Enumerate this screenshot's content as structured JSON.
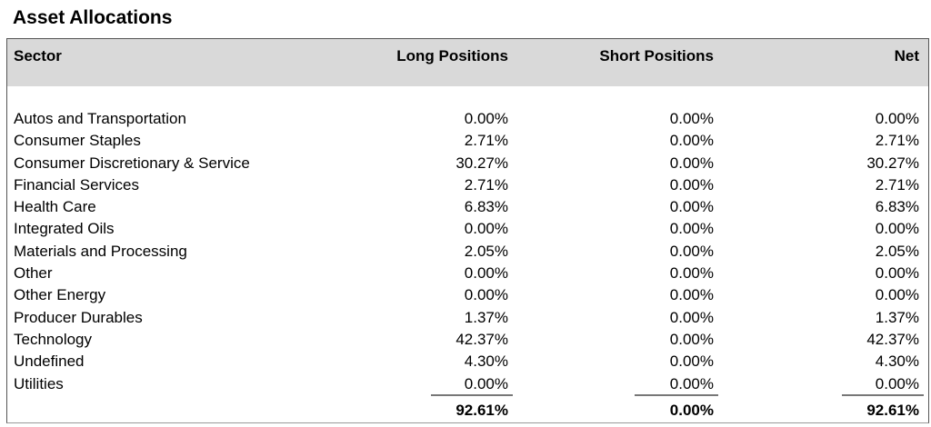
{
  "title": "Asset Allocations",
  "columns": {
    "sector": "Sector",
    "long": "Long Positions",
    "short": "Short Positions",
    "net": "Net"
  },
  "rows": [
    {
      "sector": "Autos and Transportation",
      "long": "0.00%",
      "short": "0.00%",
      "net": "0.00%"
    },
    {
      "sector": "Consumer Staples",
      "long": "2.71%",
      "short": "0.00%",
      "net": "2.71%"
    },
    {
      "sector": "Consumer Discretionary & Service",
      "long": "30.27%",
      "short": "0.00%",
      "net": "30.27%"
    },
    {
      "sector": "Financial Services",
      "long": "2.71%",
      "short": "0.00%",
      "net": "2.71%"
    },
    {
      "sector": "Health Care",
      "long": "6.83%",
      "short": "0.00%",
      "net": "6.83%"
    },
    {
      "sector": "Integrated Oils",
      "long": "0.00%",
      "short": "0.00%",
      "net": "0.00%"
    },
    {
      "sector": "Materials and Processing",
      "long": "2.05%",
      "short": "0.00%",
      "net": "2.05%"
    },
    {
      "sector": "Other",
      "long": "0.00%",
      "short": "0.00%",
      "net": "0.00%"
    },
    {
      "sector": "Other Energy",
      "long": "0.00%",
      "short": "0.00%",
      "net": "0.00%"
    },
    {
      "sector": "Producer Durables",
      "long": "1.37%",
      "short": "0.00%",
      "net": "1.37%"
    },
    {
      "sector": "Technology",
      "long": "42.37%",
      "short": "0.00%",
      "net": "42.37%"
    },
    {
      "sector": "Undefined",
      "long": "4.30%",
      "short": "0.00%",
      "net": "4.30%"
    },
    {
      "sector": "Utilities",
      "long": "0.00%",
      "short": "0.00%",
      "net": "0.00%"
    }
  ],
  "totals": {
    "long": "92.61%",
    "short": "0.00%",
    "net": "92.61%"
  }
}
